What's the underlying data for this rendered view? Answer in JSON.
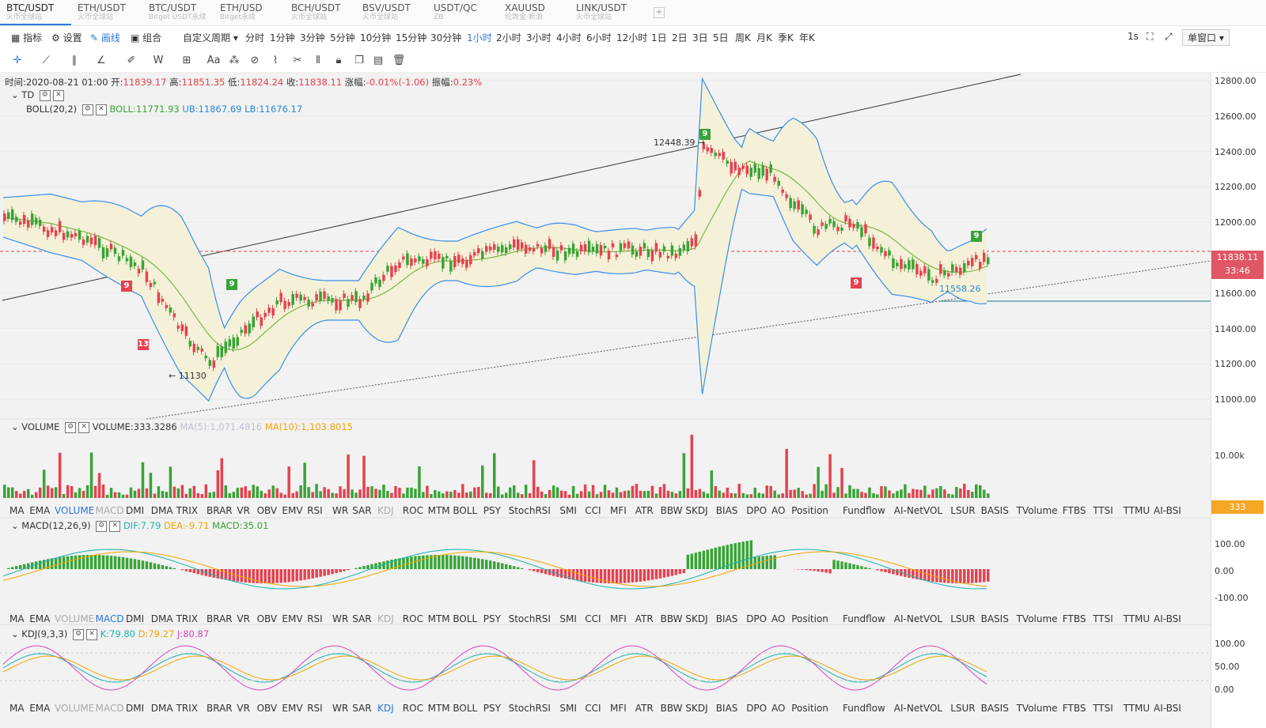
{
  "tabs": [
    {
      "symbol": "BTC/USDT",
      "source": "火币全球站",
      "active": true
    },
    {
      "symbol": "ETH/USDT",
      "source": "火币全球站"
    },
    {
      "symbol": "BTC/USDT",
      "source": "Bitget USDT永续"
    },
    {
      "symbol": "ETH/USD",
      "source": "Bitget永续"
    },
    {
      "symbol": "BCH/USDT",
      "source": "火币全球站"
    },
    {
      "symbol": "BSV/USDT",
      "source": "火币全球站"
    },
    {
      "symbol": "USDT/QC",
      "source": "ZB"
    },
    {
      "symbol": "XAUUSD",
      "source": "伦敦金·新浪"
    },
    {
      "symbol": "LINK/USDT",
      "source": "火币全球站"
    }
  ],
  "toolbar": {
    "indicators": "指标",
    "settings": "设置",
    "draw": "画线",
    "combine": "组合",
    "custom_period": "自定义周期",
    "periods": [
      "分时",
      "1分钟",
      "3分钟",
      "5分钟",
      "10分钟",
      "15分钟",
      "30分钟",
      "1小时",
      "2小时",
      "3小时",
      "4小时",
      "6小时",
      "12小时",
      "1日",
      "2日",
      "3日",
      "5日",
      "周K",
      "月K",
      "季K",
      "年K"
    ],
    "active_period": "1小时",
    "refresh": "1s",
    "window_mode": "单窗口"
  },
  "info": {
    "time_label": "时间:",
    "time": "2020-08-21 01:00",
    "open_label": "开:",
    "open": "11839.17",
    "high_label": "高:",
    "high": "11851.35",
    "low_label": "低:",
    "low": "11824.24",
    "close_label": "收:",
    "close": "11838.11",
    "change_label": "涨幅:",
    "change": "-0.01%(-1.06)",
    "amp_label": "振幅:",
    "amp": "0.23%"
  },
  "td": {
    "label": "TD"
  },
  "boll": {
    "label": "BOLL(20,2)",
    "boll": "BOLL:11771.93",
    "ub": "UB:11867.69",
    "lb": "LB:11676.17"
  },
  "price_axis": [
    "12800.00",
    "12600.00",
    "12400.00",
    "12200.00",
    "12000.00",
    "11800.00",
    "11600.00",
    "11400.00",
    "11200.00",
    "11000.00"
  ],
  "price_tag": {
    "price": "11838.11",
    "countdown": "33:46"
  },
  "annotations": {
    "high": "12448.39",
    "low": "11130",
    "low2": "11558.26"
  },
  "td_marks": [
    "9",
    "9",
    "13",
    "9",
    "9",
    "9"
  ],
  "volume": {
    "label": "VOLUME",
    "value": "VOLUME:333.3286",
    "ma5": "MA(5):1,071.4816",
    "ma10": "MA(10):1,103.8015",
    "axis": "10.00k",
    "tag": "333"
  },
  "macd": {
    "label": "MACD(12,26,9)",
    "dif": "DIF:7.79",
    "dea": "DEA:-9.71",
    "macd": "MACD:35.01",
    "axis": [
      "100.00",
      "0.00",
      "-100.00"
    ]
  },
  "kdj": {
    "label": "KDJ(9,3,3)",
    "k": "K:79.80",
    "d": "D:79.27",
    "j": "J:80.87",
    "axis": [
      "100.00",
      "50.00",
      "0.00"
    ]
  },
  "indicator_list": [
    "MA",
    "EMA",
    "VOLUME",
    "MACD",
    "DMI",
    "DMA",
    "TRIX",
    "BRAR",
    "VR",
    "OBV",
    "EMV",
    "RSI",
    "WR",
    "SAR",
    "KDJ",
    "ROC",
    "MTM",
    "BOLL",
    "PSY",
    "StochRSI",
    "SMI",
    "CCI",
    "MFI",
    "ATR",
    "BBW",
    "SKDJ",
    "BIAS",
    "DPO",
    "AO",
    "Position",
    "Fundflow",
    "AI-NetVOL",
    "LSUR",
    "BASIS",
    "TVolume",
    "FTBS",
    "TTSI",
    "TTMU",
    "AI-BSI"
  ],
  "colors": {
    "up": "#38a337",
    "down": "#e5414f",
    "accent": "#2a78d8",
    "boll_band": "#3a8ee6",
    "boll_mid": "#7ab648"
  }
}
